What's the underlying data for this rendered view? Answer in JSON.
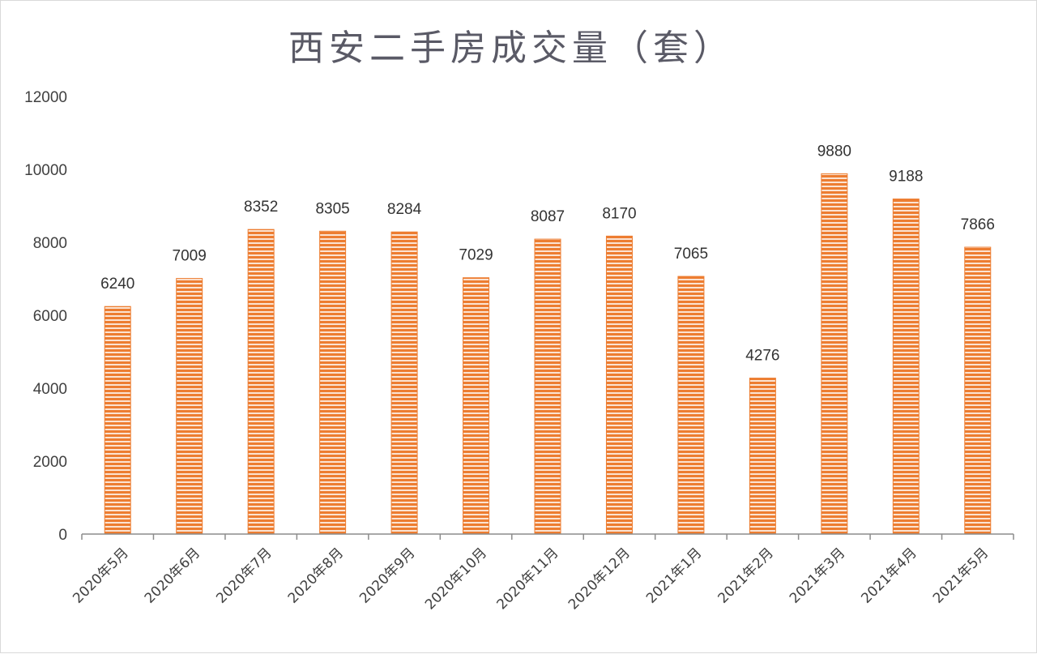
{
  "chart_data": {
    "type": "bar",
    "title": "西安二手房成交量（套）",
    "categories": [
      "2020年5月",
      "2020年6月",
      "2020年7月",
      "2020年8月",
      "2020年9月",
      "2020年10月",
      "2020年11月",
      "2020年12月",
      "2021年1月",
      "2021年2月",
      "2021年3月",
      "2021年4月",
      "2021年5月"
    ],
    "values": [
      6240,
      7009,
      8352,
      8305,
      8284,
      7029,
      8087,
      8170,
      7065,
      4276,
      9880,
      9188,
      7866
    ],
    "ylim": [
      0,
      12000
    ],
    "yticks": [
      0,
      2000,
      4000,
      6000,
      8000,
      10000,
      12000
    ],
    "grid": false,
    "bar_color": "#ed7d31",
    "stripe_color": "#fbe3d2",
    "data_labels": true
  }
}
